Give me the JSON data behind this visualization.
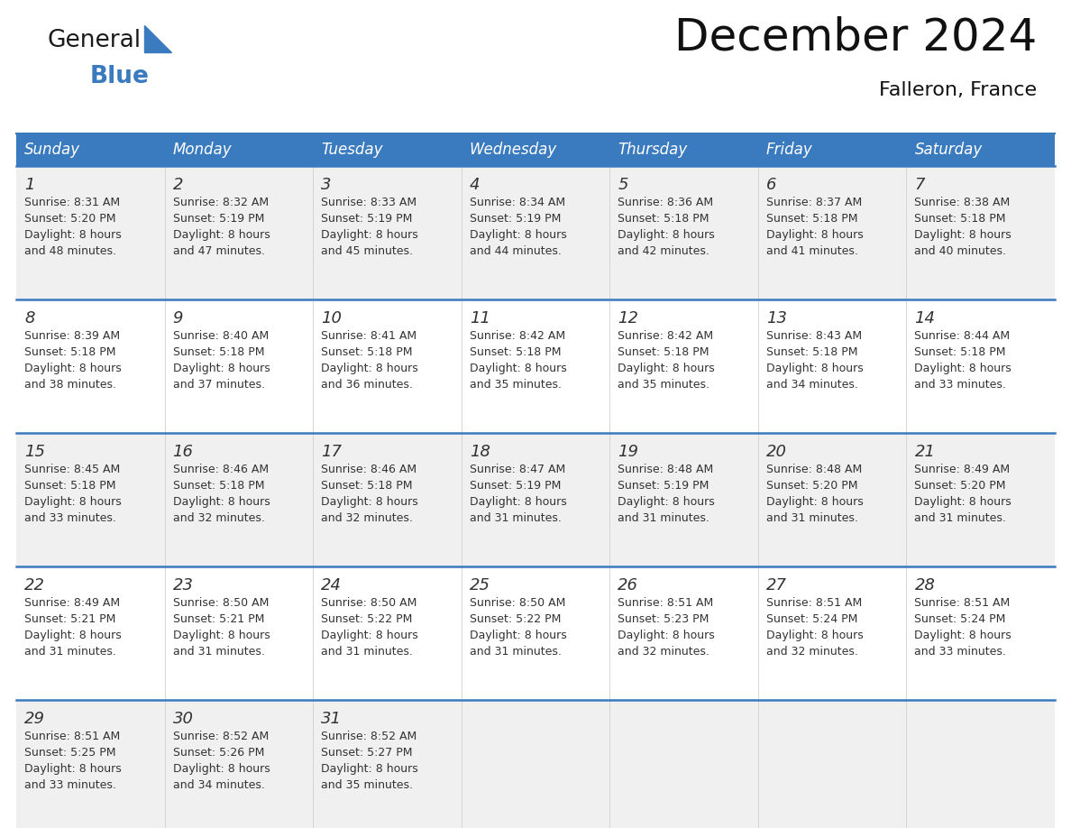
{
  "title": "December 2024",
  "subtitle": "Falleron, France",
  "header_color": "#3a7abf",
  "header_text_color": "#ffffff",
  "row_bg_odd": "#f0f0f0",
  "row_bg_even": "#ffffff",
  "border_color": "#3a7abf",
  "text_color": "#333333",
  "days_of_week": [
    "Sunday",
    "Monday",
    "Tuesday",
    "Wednesday",
    "Thursday",
    "Friday",
    "Saturday"
  ],
  "weeks": [
    [
      {
        "day": 1,
        "sunrise": "8:31 AM",
        "sunset": "5:20 PM",
        "daylight": "8 hours and 48 minutes."
      },
      {
        "day": 2,
        "sunrise": "8:32 AM",
        "sunset": "5:19 PM",
        "daylight": "8 hours and 47 minutes."
      },
      {
        "day": 3,
        "sunrise": "8:33 AM",
        "sunset": "5:19 PM",
        "daylight": "8 hours and 45 minutes."
      },
      {
        "day": 4,
        "sunrise": "8:34 AM",
        "sunset": "5:19 PM",
        "daylight": "8 hours and 44 minutes."
      },
      {
        "day": 5,
        "sunrise": "8:36 AM",
        "sunset": "5:18 PM",
        "daylight": "8 hours and 42 minutes."
      },
      {
        "day": 6,
        "sunrise": "8:37 AM",
        "sunset": "5:18 PM",
        "daylight": "8 hours and 41 minutes."
      },
      {
        "day": 7,
        "sunrise": "8:38 AM",
        "sunset": "5:18 PM",
        "daylight": "8 hours and 40 minutes."
      }
    ],
    [
      {
        "day": 8,
        "sunrise": "8:39 AM",
        "sunset": "5:18 PM",
        "daylight": "8 hours and 38 minutes."
      },
      {
        "day": 9,
        "sunrise": "8:40 AM",
        "sunset": "5:18 PM",
        "daylight": "8 hours and 37 minutes."
      },
      {
        "day": 10,
        "sunrise": "8:41 AM",
        "sunset": "5:18 PM",
        "daylight": "8 hours and 36 minutes."
      },
      {
        "day": 11,
        "sunrise": "8:42 AM",
        "sunset": "5:18 PM",
        "daylight": "8 hours and 35 minutes."
      },
      {
        "day": 12,
        "sunrise": "8:42 AM",
        "sunset": "5:18 PM",
        "daylight": "8 hours and 35 minutes."
      },
      {
        "day": 13,
        "sunrise": "8:43 AM",
        "sunset": "5:18 PM",
        "daylight": "8 hours and 34 minutes."
      },
      {
        "day": 14,
        "sunrise": "8:44 AM",
        "sunset": "5:18 PM",
        "daylight": "8 hours and 33 minutes."
      }
    ],
    [
      {
        "day": 15,
        "sunrise": "8:45 AM",
        "sunset": "5:18 PM",
        "daylight": "8 hours and 33 minutes."
      },
      {
        "day": 16,
        "sunrise": "8:46 AM",
        "sunset": "5:18 PM",
        "daylight": "8 hours and 32 minutes."
      },
      {
        "day": 17,
        "sunrise": "8:46 AM",
        "sunset": "5:18 PM",
        "daylight": "8 hours and 32 minutes."
      },
      {
        "day": 18,
        "sunrise": "8:47 AM",
        "sunset": "5:19 PM",
        "daylight": "8 hours and 31 minutes."
      },
      {
        "day": 19,
        "sunrise": "8:48 AM",
        "sunset": "5:19 PM",
        "daylight": "8 hours and 31 minutes."
      },
      {
        "day": 20,
        "sunrise": "8:48 AM",
        "sunset": "5:20 PM",
        "daylight": "8 hours and 31 minutes."
      },
      {
        "day": 21,
        "sunrise": "8:49 AM",
        "sunset": "5:20 PM",
        "daylight": "8 hours and 31 minutes."
      }
    ],
    [
      {
        "day": 22,
        "sunrise": "8:49 AM",
        "sunset": "5:21 PM",
        "daylight": "8 hours and 31 minutes."
      },
      {
        "day": 23,
        "sunrise": "8:50 AM",
        "sunset": "5:21 PM",
        "daylight": "8 hours and 31 minutes."
      },
      {
        "day": 24,
        "sunrise": "8:50 AM",
        "sunset": "5:22 PM",
        "daylight": "8 hours and 31 minutes."
      },
      {
        "day": 25,
        "sunrise": "8:50 AM",
        "sunset": "5:22 PM",
        "daylight": "8 hours and 31 minutes."
      },
      {
        "day": 26,
        "sunrise": "8:51 AM",
        "sunset": "5:23 PM",
        "daylight": "8 hours and 32 minutes."
      },
      {
        "day": 27,
        "sunrise": "8:51 AM",
        "sunset": "5:24 PM",
        "daylight": "8 hours and 32 minutes."
      },
      {
        "day": 28,
        "sunrise": "8:51 AM",
        "sunset": "5:24 PM",
        "daylight": "8 hours and 33 minutes."
      }
    ],
    [
      {
        "day": 29,
        "sunrise": "8:51 AM",
        "sunset": "5:25 PM",
        "daylight": "8 hours and 33 minutes."
      },
      {
        "day": 30,
        "sunrise": "8:52 AM",
        "sunset": "5:26 PM",
        "daylight": "8 hours and 34 minutes."
      },
      {
        "day": 31,
        "sunrise": "8:52 AM",
        "sunset": "5:27 PM",
        "daylight": "8 hours and 35 minutes."
      },
      null,
      null,
      null,
      null
    ]
  ],
  "logo_general_color": "#1a1a1a",
  "logo_blue_color": "#3a7abf",
  "logo_triangle_color": "#3a7abf",
  "title_fontsize": 36,
  "subtitle_fontsize": 16,
  "header_fontsize": 12,
  "day_num_fontsize": 13,
  "cell_text_fontsize": 9
}
